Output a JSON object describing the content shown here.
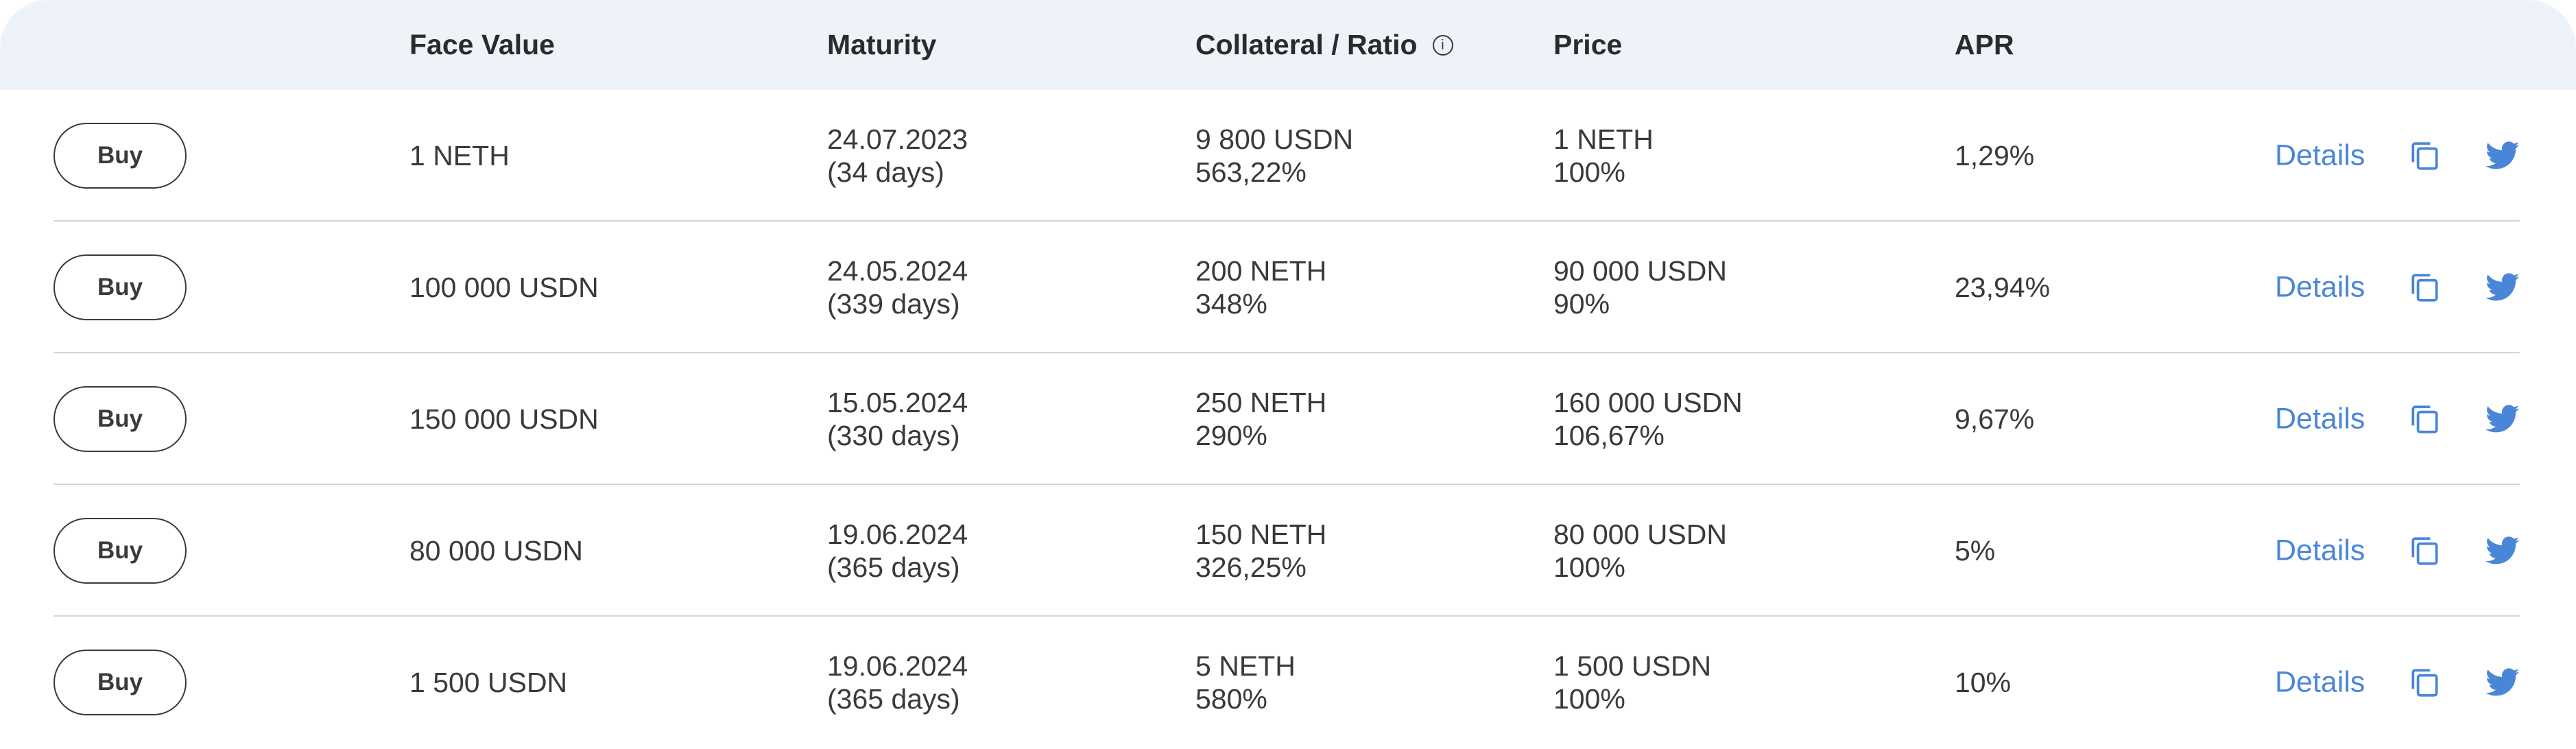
{
  "header": {
    "face_value": "Face Value",
    "maturity": "Maturity",
    "collateral_ratio": "Collateral / Ratio",
    "info_glyph": "i",
    "price": "Price",
    "apr": "APR"
  },
  "icons": {
    "info": "info-circle-icon",
    "copy": "copy-icon",
    "twitter": "twitter-icon"
  },
  "colors": {
    "accent": "#4a86d8",
    "header_bg": "#eef3fa",
    "text": "#3a3a3a",
    "divider": "#d5d5d5"
  },
  "rows": [
    {
      "buy_label": "Buy",
      "face_value": "1 NETH",
      "maturity_date": "24.07.2023",
      "maturity_days": "(34 days)",
      "collateral": "9 800 USDN",
      "ratio": "563,22%",
      "price": "1 NETH",
      "price_percent": "100%",
      "apr": "1,29%",
      "details_label": "Details"
    },
    {
      "buy_label": "Buy",
      "face_value": "100 000 USDN",
      "maturity_date": "24.05.2024",
      "maturity_days": "(339 days)",
      "collateral": "200 NETH",
      "ratio": "348%",
      "price": "90 000 USDN",
      "price_percent": "90%",
      "apr": "23,94%",
      "details_label": "Details"
    },
    {
      "buy_label": "Buy",
      "face_value": "150 000 USDN",
      "maturity_date": "15.05.2024",
      "maturity_days": "(330 days)",
      "collateral": "250 NETH",
      "ratio": "290%",
      "price": "160 000 USDN",
      "price_percent": "106,67%",
      "apr": "9,67%",
      "details_label": "Details"
    },
    {
      "buy_label": "Buy",
      "face_value": "80 000 USDN",
      "maturity_date": "19.06.2024",
      "maturity_days": "(365 days)",
      "collateral": "150 NETH",
      "ratio": "326,25%",
      "price": "80 000 USDN",
      "price_percent": "100%",
      "apr": "5%",
      "details_label": "Details"
    },
    {
      "buy_label": "Buy",
      "face_value": "1 500 USDN",
      "maturity_date": "19.06.2024",
      "maturity_days": "(365 days)",
      "collateral": "5 NETH",
      "ratio": "580%",
      "price": "1 500 USDN",
      "price_percent": "100%",
      "apr": "10%",
      "details_label": "Details"
    }
  ]
}
